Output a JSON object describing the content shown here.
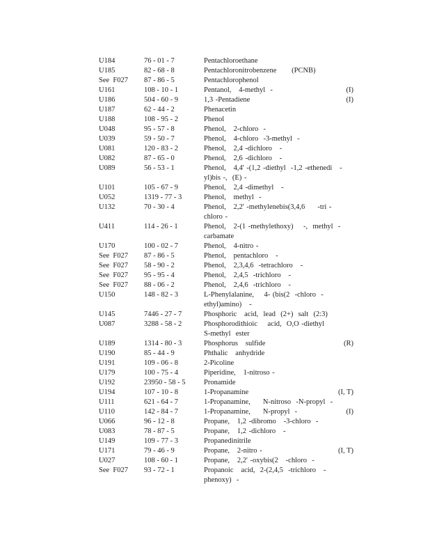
{
  "page": {
    "background_color": "#ffffff",
    "text_color": "#1d1d1f"
  },
  "table": {
    "rows": [
      {
        "code": "U184",
        "cas": "76 - 01 - 7",
        "name_lines": [
          "Pentachloroethane"
        ]
      },
      {
        "code": "U185",
        "cas": "82 - 68 - 8",
        "name_lines": [
          "Pentachloronitrobenzene      (PCNB)"
        ]
      },
      {
        "code": "See  F027",
        "cas": "87 - 86 - 5",
        "name_lines": [
          "Pentachlorophenol"
        ]
      },
      {
        "code": "U161",
        "cas": "108 - 10 - 1",
        "name_lines": [
          "Pentanol,   4-methyl  -"
        ],
        "note": "(I)"
      },
      {
        "code": "U186",
        "cas": "504 - 60 - 9",
        "name_lines": [
          "1,3 -Pentadiene"
        ],
        "note": "(I)"
      },
      {
        "code": "U187",
        "cas": "62 - 44 - 2",
        "name_lines": [
          "Phenacetin"
        ]
      },
      {
        "code": "U188",
        "cas": "108 - 95 - 2",
        "name_lines": [
          "Phenol"
        ]
      },
      {
        "code": "U048",
        "cas": "95 - 57 - 8",
        "name_lines": [
          "Phenol,   2-chloro  -"
        ]
      },
      {
        "code": "U039",
        "cas": "59 - 50 - 7",
        "name_lines": [
          "Phenol,   4-chloro  -3-methyl  -"
        ]
      },
      {
        "code": "U081",
        "cas": "120 - 83 - 2",
        "name_lines": [
          "Phenol,   2,4 -dichloro   -"
        ]
      },
      {
        "code": "U082",
        "cas": "87 - 65 - 0",
        "name_lines": [
          "Phenol,   2,6 -dichloro   -"
        ]
      },
      {
        "code": "U089",
        "cas": "56 - 53 - 1",
        "name_lines": [
          "Phenol,   4,4' -(1,2 -diethyl  -1,2 -ethenedi   -",
          "yl)bis -,  (E) -"
        ]
      },
      {
        "code": "U101",
        "cas": "105 - 67 - 9",
        "name_lines": [
          "Phenol,   2,4 -dimethyl   -"
        ]
      },
      {
        "code": "U052",
        "cas": "1319 - 77 - 3",
        "name_lines": [
          "Phenol,   methyl  -"
        ]
      },
      {
        "code": "U132",
        "cas": "70 - 30 - 4",
        "name_lines": [
          "Phenol,   2,2' -methylenebis(3,4,6     -tri -",
          "chloro -"
        ]
      },
      {
        "code": "U411",
        "cas": "114 - 26 - 1",
        "name_lines": [
          "Phenol,   2-(1 -methylethoxy)    -,  methyl  -",
          "carbamate"
        ]
      },
      {
        "code": "U170",
        "cas": "100 - 02 - 7",
        "name_lines": [
          "Phenol,   4-nitro -"
        ]
      },
      {
        "code": "See  F027",
        "cas": "87 - 86 - 5",
        "name_lines": [
          "Phenol,   pentachloro   -"
        ]
      },
      {
        "code": "See  F027",
        "cas": "58 - 90 - 2",
        "name_lines": [
          "Phenol,   2,3,4,6  -tetrachloro   -"
        ]
      },
      {
        "code": "See  F027",
        "cas": "95 - 95 - 4",
        "name_lines": [
          "Phenol,   2,4,5  -trichloro   -"
        ]
      },
      {
        "code": "See  F027",
        "cas": "88 - 06 - 2",
        "name_lines": [
          "Phenol,   2,4,6  -trichloro   -"
        ]
      },
      {
        "code": "U150",
        "cas": "148 - 82 - 3",
        "name_lines": [
          "L-Phenylalanine,    4- (bis(2  -chloro  -",
          "ethyl)amino)   -"
        ]
      },
      {
        "code": "U145",
        "cas": "7446 - 27 - 7",
        "name_lines": [
          "Phosphoric   acid,  lead  (2+)  salt  (2:3)"
        ]
      },
      {
        "code": "U087",
        "cas": "3288 - 58 - 2",
        "name_lines": [
          "Phosphorodithioic    acid,  O,O -diethyl",
          "S-methyl  ester"
        ]
      },
      {
        "code": "U189",
        "cas": "1314 - 80 - 3",
        "name_lines": [
          "Phosphorus   sulfide"
        ],
        "note": "(R)"
      },
      {
        "code": "U190",
        "cas": "85 - 44 - 9",
        "name_lines": [
          "Phthalic   anhydride"
        ]
      },
      {
        "code": "U191",
        "cas": "109 - 06 - 8",
        "name_lines": [
          "2-Picoline"
        ]
      },
      {
        "code": "U179",
        "cas": "100 - 75 - 4",
        "name_lines": [
          "Piperidine,   1-nitroso -"
        ]
      },
      {
        "code": "U192",
        "cas": "23950 - 58 - 5",
        "name_lines": [
          "Pronamide"
        ]
      },
      {
        "code": "U194",
        "cas": "107 - 10 - 8",
        "name_lines": [
          "1-Propanamine"
        ],
        "note": "(I, T)"
      },
      {
        "code": "U111",
        "cas": "621 - 64 - 7",
        "name_lines": [
          "1-Propanamine,     N-nitroso  -N-propyl  -"
        ]
      },
      {
        "code": "U110",
        "cas": "142 - 84 - 7",
        "name_lines": [
          "1-Propanamine,     N-propyl  -"
        ],
        "note": "(I)"
      },
      {
        "code": "U066",
        "cas": "96 - 12 - 8",
        "name_lines": [
          "Propane,   1,2 -dibromo   -3-chloro  -"
        ]
      },
      {
        "code": "U083",
        "cas": "78 - 87 - 5",
        "name_lines": [
          "Propane,   1,2 -dichloro   -"
        ]
      },
      {
        "code": "U149",
        "cas": "109 - 77 - 3",
        "name_lines": [
          "Propanedinitrile"
        ]
      },
      {
        "code": "U171",
        "cas": "79 - 46 - 9",
        "name_lines": [
          "Propane,   2-nitro -"
        ],
        "note": "(I, T)"
      },
      {
        "code": "U027",
        "cas": "108 - 60 - 1",
        "name_lines": [
          "Propane,   2,2' -oxybis(2   -chloro  -"
        ]
      },
      {
        "code": "See  F027",
        "cas": "93 - 72 - 1",
        "name_lines": [
          "Propanoic   acid,  2-(2,4,5  -trichloro   -",
          "phenoxy)  -"
        ]
      }
    ]
  }
}
